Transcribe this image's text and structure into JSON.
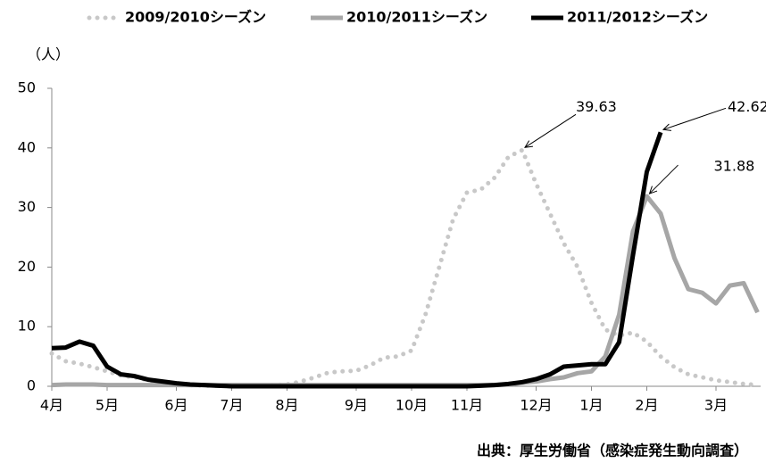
{
  "chart_data": {
    "type": "line",
    "y_label": "（人）",
    "source": "出典：厚生労働省（感染症発生動向調査）",
    "categories": [
      "4月",
      null,
      null,
      null,
      "5月",
      null,
      null,
      null,
      null,
      "6月",
      null,
      null,
      null,
      "7月",
      null,
      null,
      null,
      "8月",
      null,
      null,
      null,
      null,
      "9月",
      null,
      null,
      null,
      "10月",
      null,
      null,
      null,
      "11月",
      null,
      null,
      null,
      null,
      "12月",
      null,
      null,
      null,
      "1月",
      null,
      null,
      null,
      "2月",
      null,
      null,
      null,
      null,
      "3月",
      null,
      null,
      null
    ],
    "series": [
      {
        "name": "2009/2010シーズン",
        "color": "#c8c8c8",
        "style": "dotted",
        "values": [
          5.5,
          4.2,
          3.8,
          3.2,
          2.5,
          1.8,
          1.5,
          1.0,
          0.6,
          0.4,
          0.2,
          0.1,
          0.1,
          0.1,
          0.1,
          0.1,
          0.2,
          0.3,
          0.8,
          1.5,
          2.3,
          2.5,
          2.6,
          3.5,
          4.8,
          5.0,
          6.0,
          12.0,
          20.0,
          28.0,
          32.5,
          33.0,
          35.0,
          38.5,
          39.63,
          34.0,
          29.0,
          24.0,
          20.0,
          14.0,
          9.5,
          8.5,
          9.0,
          7.5,
          5.0,
          3.2,
          2.0,
          1.5,
          1.0,
          0.7,
          0.4,
          0.2
        ]
      },
      {
        "name": "2010/2011シーズン",
        "color": "#a6a6a6",
        "style": "solid",
        "values": [
          0.2,
          0.3,
          0.3,
          0.3,
          0.2,
          0.2,
          0.2,
          0.2,
          0.2,
          0.2,
          0.2,
          0.2,
          0.2,
          0.2,
          0.2,
          0.2,
          0.2,
          0.2,
          0.2,
          0.2,
          0.2,
          0.2,
          0.2,
          0.2,
          0.2,
          0.2,
          0.2,
          0.2,
          0.2,
          0.2,
          0.2,
          0.2,
          0.2,
          0.3,
          0.6,
          0.8,
          1.2,
          1.5,
          2.2,
          2.5,
          5.0,
          12.0,
          26.0,
          31.88,
          29.0,
          21.5,
          16.3,
          15.7,
          13.9,
          16.9,
          17.3,
          12.4
        ]
      },
      {
        "name": "2011/2012シーズン",
        "color": "#000000",
        "style": "solid",
        "values": [
          6.4,
          6.5,
          7.5,
          6.8,
          3.3,
          2.0,
          1.7,
          1.1,
          0.8,
          0.5,
          0.3,
          0.2,
          0.1,
          0,
          0,
          0,
          0,
          0,
          0,
          0,
          0,
          0,
          0,
          0,
          0,
          0,
          0,
          0,
          0,
          0,
          0,
          0.1,
          0.2,
          0.4,
          0.7,
          1.2,
          2.0,
          3.3,
          3.5,
          3.7,
          3.7,
          7.4,
          22.0,
          36.0,
          42.62,
          null,
          null,
          null,
          null,
          null,
          null,
          null
        ]
      }
    ],
    "ylim": [
      0,
      50
    ],
    "yticks": [
      0,
      10,
      20,
      30,
      40,
      50
    ],
    "grid": false
  }
}
